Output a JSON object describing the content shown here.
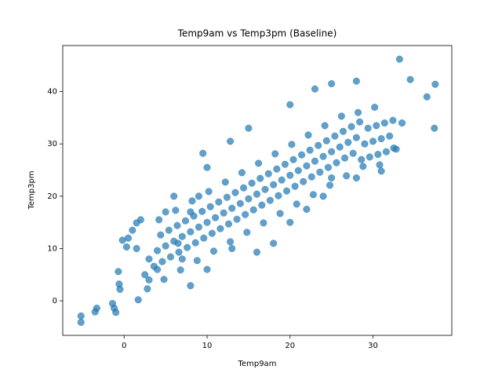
{
  "chart_data": {
    "type": "scatter",
    "title": "Temp9am vs Temp3pm (Baseline)",
    "xlabel": "Temp9am",
    "ylabel": "Temp3pm",
    "color": "#1f77b4",
    "xlim": [
      -7.4,
      39.5
    ],
    "ylim": [
      -6.6,
      48.8
    ],
    "xticks": [
      0,
      10,
      20,
      30
    ],
    "yticks": [
      0,
      10,
      20,
      30,
      40
    ],
    "x": [
      3.6,
      4,
      4.4,
      4.8,
      4.6,
      5,
      5.4,
      4.2,
      5.6,
      6,
      6.4,
      6.8,
      6.6,
      7,
      7.4,
      6.2,
      7.6,
      8,
      8.4,
      8.8,
      8.6,
      9,
      9.4,
      8.2,
      9.6,
      10,
      10.4,
      10.8,
      10.6,
      11,
      11.4,
      10.2,
      11.6,
      12,
      12.4,
      12.8,
      12.6,
      13,
      13.4,
      12.2,
      13.6,
      14,
      14.4,
      14.8,
      14.6,
      15,
      15.4,
      14.2,
      15.6,
      16,
      16.4,
      16.8,
      16.6,
      17,
      17.4,
      16.2,
      17.6,
      18,
      18.4,
      18.8,
      18.6,
      19,
      19.4,
      18.2,
      19.6,
      20,
      20.4,
      20.8,
      20.6,
      21,
      21.4,
      20.2,
      21.6,
      22,
      22.4,
      22.8,
      22.6,
      23,
      23.4,
      22.2,
      23.6,
      24,
      24.4,
      24.8,
      24.6,
      25,
      25.4,
      24.2,
      25.6,
      26,
      26.4,
      26.8,
      26.6,
      27,
      27.4,
      26.2,
      27.6,
      28,
      28.4,
      28.8,
      28.6,
      29,
      29.4,
      28.2,
      29.6,
      30,
      30.4,
      30.8,
      30.6,
      31,
      31.4,
      30.2,
      31.6,
      32,
      32.4,
      32.8,
      -5.2,
      -5.2,
      -3.3,
      -3.5,
      -1.4,
      -1.2,
      -1,
      -0.7,
      -0.5,
      -0.6,
      -0.2,
      0.3,
      0.5,
      1,
      1.5,
      1.5,
      2,
      1.7,
      2.8,
      3,
      2.5,
      4,
      8,
      8,
      9.5,
      10,
      12.8,
      15,
      20,
      23,
      25,
      28,
      33.2,
      34.5,
      36.5,
      37.5,
      37.4,
      33.5,
      32.5,
      31,
      28,
      25,
      24,
      22,
      20,
      18,
      16,
      13,
      10,
      7,
      9,
      6,
      5,
      3,
      6.5
    ],
    "y": [
      6.6,
      9.6,
      12.6,
      4.1,
      7.5,
      10.5,
      13.5,
      15.5,
      8.4,
      11.4,
      14.4,
      5.9,
      9.3,
      12.3,
      15.3,
      17.3,
      10.2,
      13.2,
      16.2,
      7.7,
      11.1,
      14.1,
      17.1,
      19.1,
      12,
      15,
      18,
      9.5,
      12.9,
      15.9,
      18.9,
      20.9,
      13.8,
      16.8,
      19.8,
      11.3,
      14.7,
      17.7,
      20.7,
      22.7,
      15.6,
      18.6,
      21.6,
      13.1,
      16.5,
      19.5,
      22.5,
      24.5,
      17.4,
      20.4,
      23.4,
      14.9,
      18.3,
      21.3,
      24.3,
      26.3,
      19.2,
      22.2,
      25.2,
      16.7,
      20.1,
      23.1,
      26.1,
      28.1,
      21,
      24,
      27,
      18.5,
      21.9,
      24.9,
      27.9,
      29.9,
      22.8,
      25.8,
      28.8,
      20.3,
      23.7,
      26.7,
      29.7,
      31.7,
      24.6,
      27.6,
      30.6,
      22.1,
      25.5,
      28.5,
      31.5,
      33.5,
      26.4,
      29.4,
      32.4,
      23.9,
      27.3,
      30.3,
      33.3,
      35.3,
      28.2,
      31.2,
      34.2,
      25.7,
      27,
      30,
      33,
      36,
      27.5,
      30.5,
      33.5,
      26,
      28,
      31,
      34,
      37,
      28.5,
      31.5,
      34.5,
      29,
      -2.9,
      -4.1,
      -1.4,
      -2.1,
      -0.5,
      -1.4,
      -2.2,
      5.6,
      2.2,
      3.2,
      11.6,
      10.3,
      12,
      13.5,
      10,
      14.9,
      15.5,
      0.2,
      2.3,
      4,
      5,
      6,
      2.9,
      17,
      28.2,
      25.5,
      30.5,
      33,
      37.5,
      40.5,
      41.5,
      42,
      46.2,
      42.3,
      39,
      41.4,
      33,
      34,
      29.2,
      24.8,
      23.5,
      23.5,
      20,
      17.5,
      15,
      11,
      9.3,
      10,
      6,
      8,
      20,
      20,
      17,
      8,
      11
    ]
  }
}
